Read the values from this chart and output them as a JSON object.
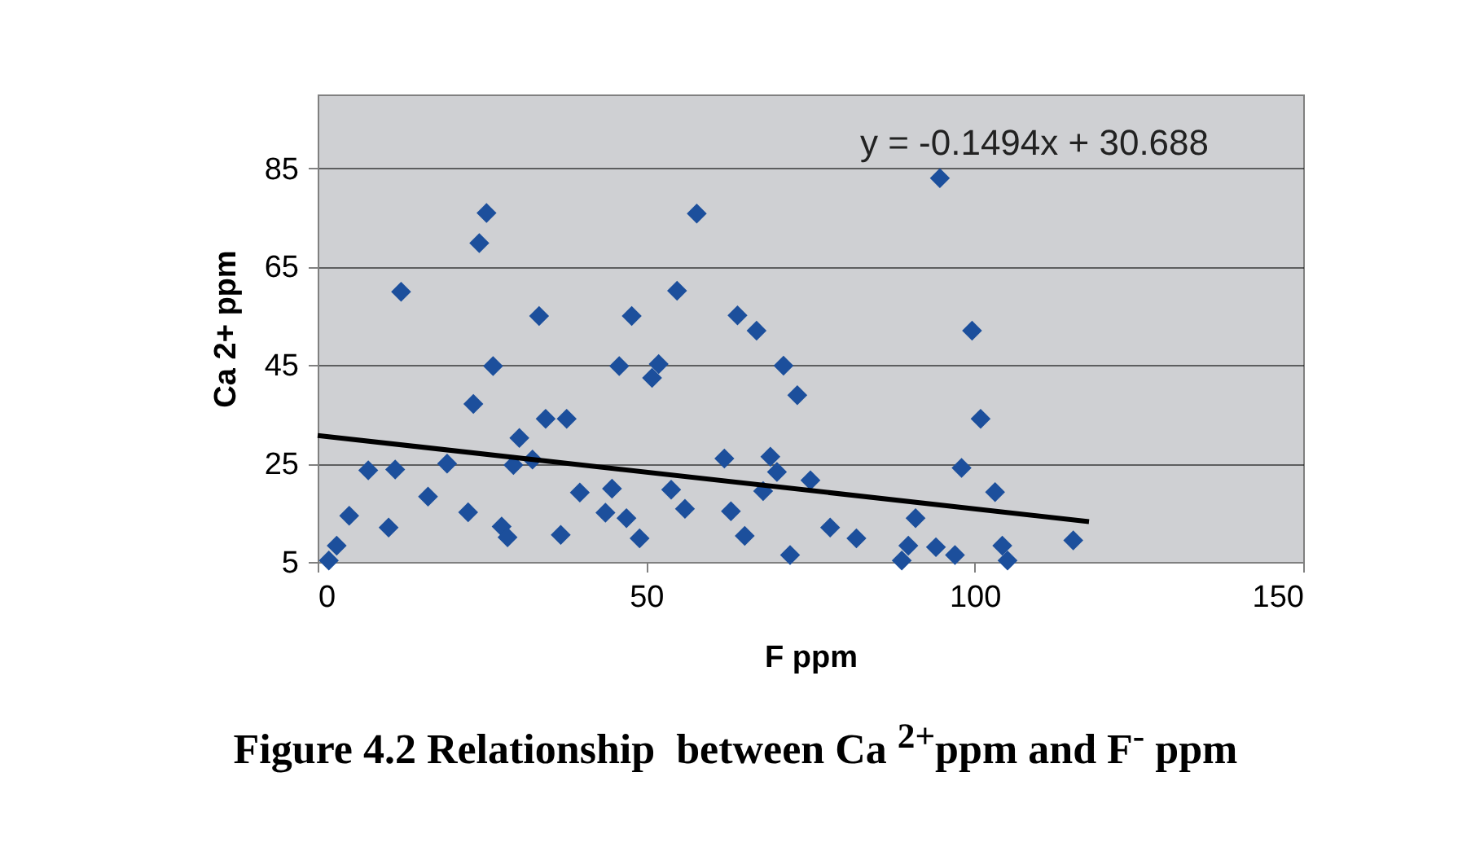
{
  "chart_data": {
    "type": "scatter",
    "title": "Figure 4.2 Relationship  between Ca $^{2+}$ppm and F$^{-}$ ppm",
    "xlabel": "F ppm",
    "ylabel": "Ca 2+ ppm",
    "annotations": [
      "y = -0.1494x + 30.688"
    ],
    "xlim": [
      0,
      150
    ],
    "xticks": [
      0,
      50,
      100,
      150
    ],
    "ylim": [
      5,
      100
    ],
    "yticks": [
      5,
      25,
      45,
      65,
      85
    ],
    "grid": "y",
    "series": [
      {
        "color": "#1c4f9c",
        "marker": "diamond",
        "x": [
          1.7,
          2.9,
          4.8,
          7.7,
          10.8,
          11.8,
          12.7,
          16.8,
          19.7,
          22.9,
          23.7,
          24.6,
          25.7,
          26.7,
          28.0,
          28.9,
          29.8,
          30.7,
          32.7,
          33.7,
          34.7,
          37.9,
          37.0,
          39.9,
          43.8,
          44.8,
          45.9,
          47.0,
          47.8,
          49.0,
          50.9,
          51.9,
          53.8,
          54.7,
          55.9,
          57.7,
          61.9,
          62.9,
          63.9,
          65.0,
          66.8,
          67.8,
          68.9,
          69.9,
          70.9,
          71.9,
          73.0,
          75.0,
          78.0,
          82.0,
          88.9,
          89.9,
          91.0,
          94.1,
          94.7,
          97.0,
          98.0,
          99.6,
          100.9,
          103.1,
          104.2,
          105.0,
          115.0
        ],
        "values": [
          5.3,
          8.3,
          14.4,
          23.6,
          12.0,
          23.8,
          59.9,
          18.3,
          25.0,
          15.1,
          37.1,
          69.8,
          75.9,
          44.8,
          12.2,
          10.0,
          24.7,
          30.2,
          25.8,
          55.0,
          34.1,
          34.1,
          10.5,
          19.1,
          15.0,
          19.9,
          44.8,
          13.9,
          55.0,
          9.8,
          42.4,
          45.2,
          19.7,
          60.1,
          15.8,
          75.8,
          26.0,
          15.3,
          55.1,
          10.3,
          52.0,
          19.4,
          26.4,
          23.3,
          44.9,
          6.4,
          38.9,
          21.6,
          12.0,
          9.8,
          5.3,
          8.3,
          13.9,
          8.0,
          83.0,
          6.4,
          24.1,
          52.0,
          34.1,
          19.2,
          8.3,
          5.3,
          9.4
        ]
      },
      {
        "type": "line",
        "color": "#000000",
        "line_style": "solid",
        "x": [
          0,
          117.4
        ],
        "values": [
          30.7,
          13.2
        ]
      }
    ]
  }
}
